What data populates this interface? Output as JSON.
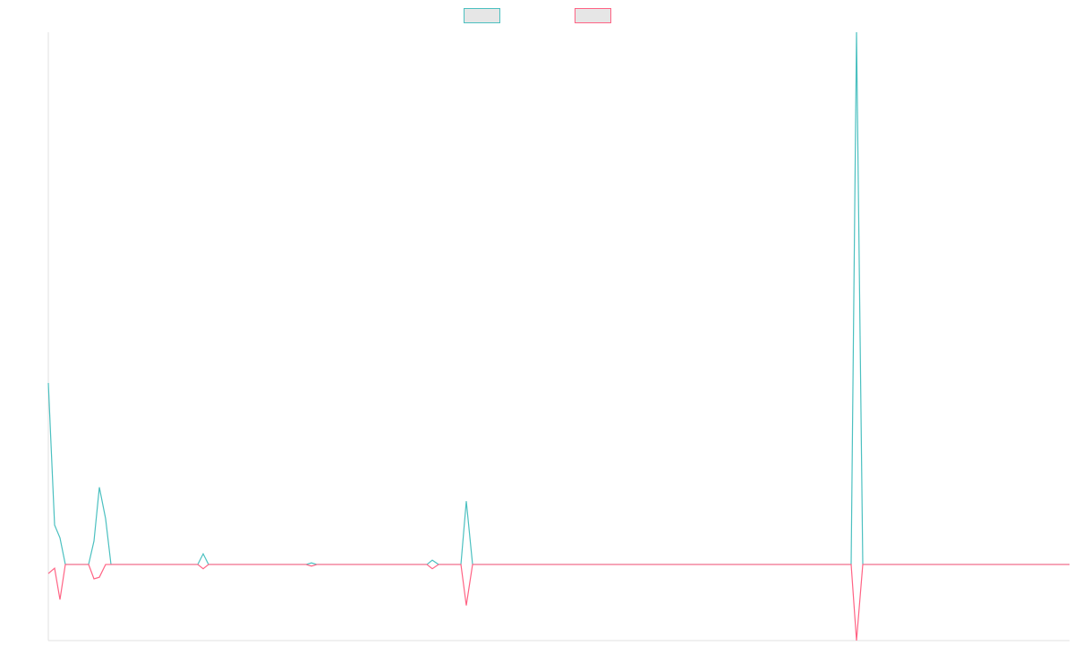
{
  "chart_data": {
    "type": "line",
    "x": [
      0,
      7,
      13,
      19,
      45,
      51,
      57,
      64,
      70,
      167,
      173,
      179,
      288,
      294,
      300,
      423,
      429,
      436,
      461,
      467,
      474,
      897,
      903,
      910,
      1141
    ],
    "series": [
      {
        "color": "#4bc0c0",
        "values": [
          34.1,
          7.4,
          5.0,
          0,
          0,
          4.4,
          14.5,
          8.6,
          0,
          0,
          2.0,
          0,
          0,
          0.3,
          0,
          0,
          0.8,
          0,
          0,
          11.9,
          0,
          0,
          100,
          0,
          0
        ]
      },
      {
        "color": "#ff6384",
        "values": [
          -1.7,
          -0.7,
          -6.6,
          0,
          0,
          -2.7,
          -2.4,
          0,
          0,
          0,
          -0.8,
          0,
          0,
          -0.3,
          0,
          0,
          -0.8,
          0,
          0,
          -7.7,
          0,
          0,
          -14.3,
          0,
          0
        ]
      }
    ],
    "xlim": [
      0,
      1141
    ],
    "ylim": [
      -14.3,
      100
    ],
    "legend": "top"
  }
}
